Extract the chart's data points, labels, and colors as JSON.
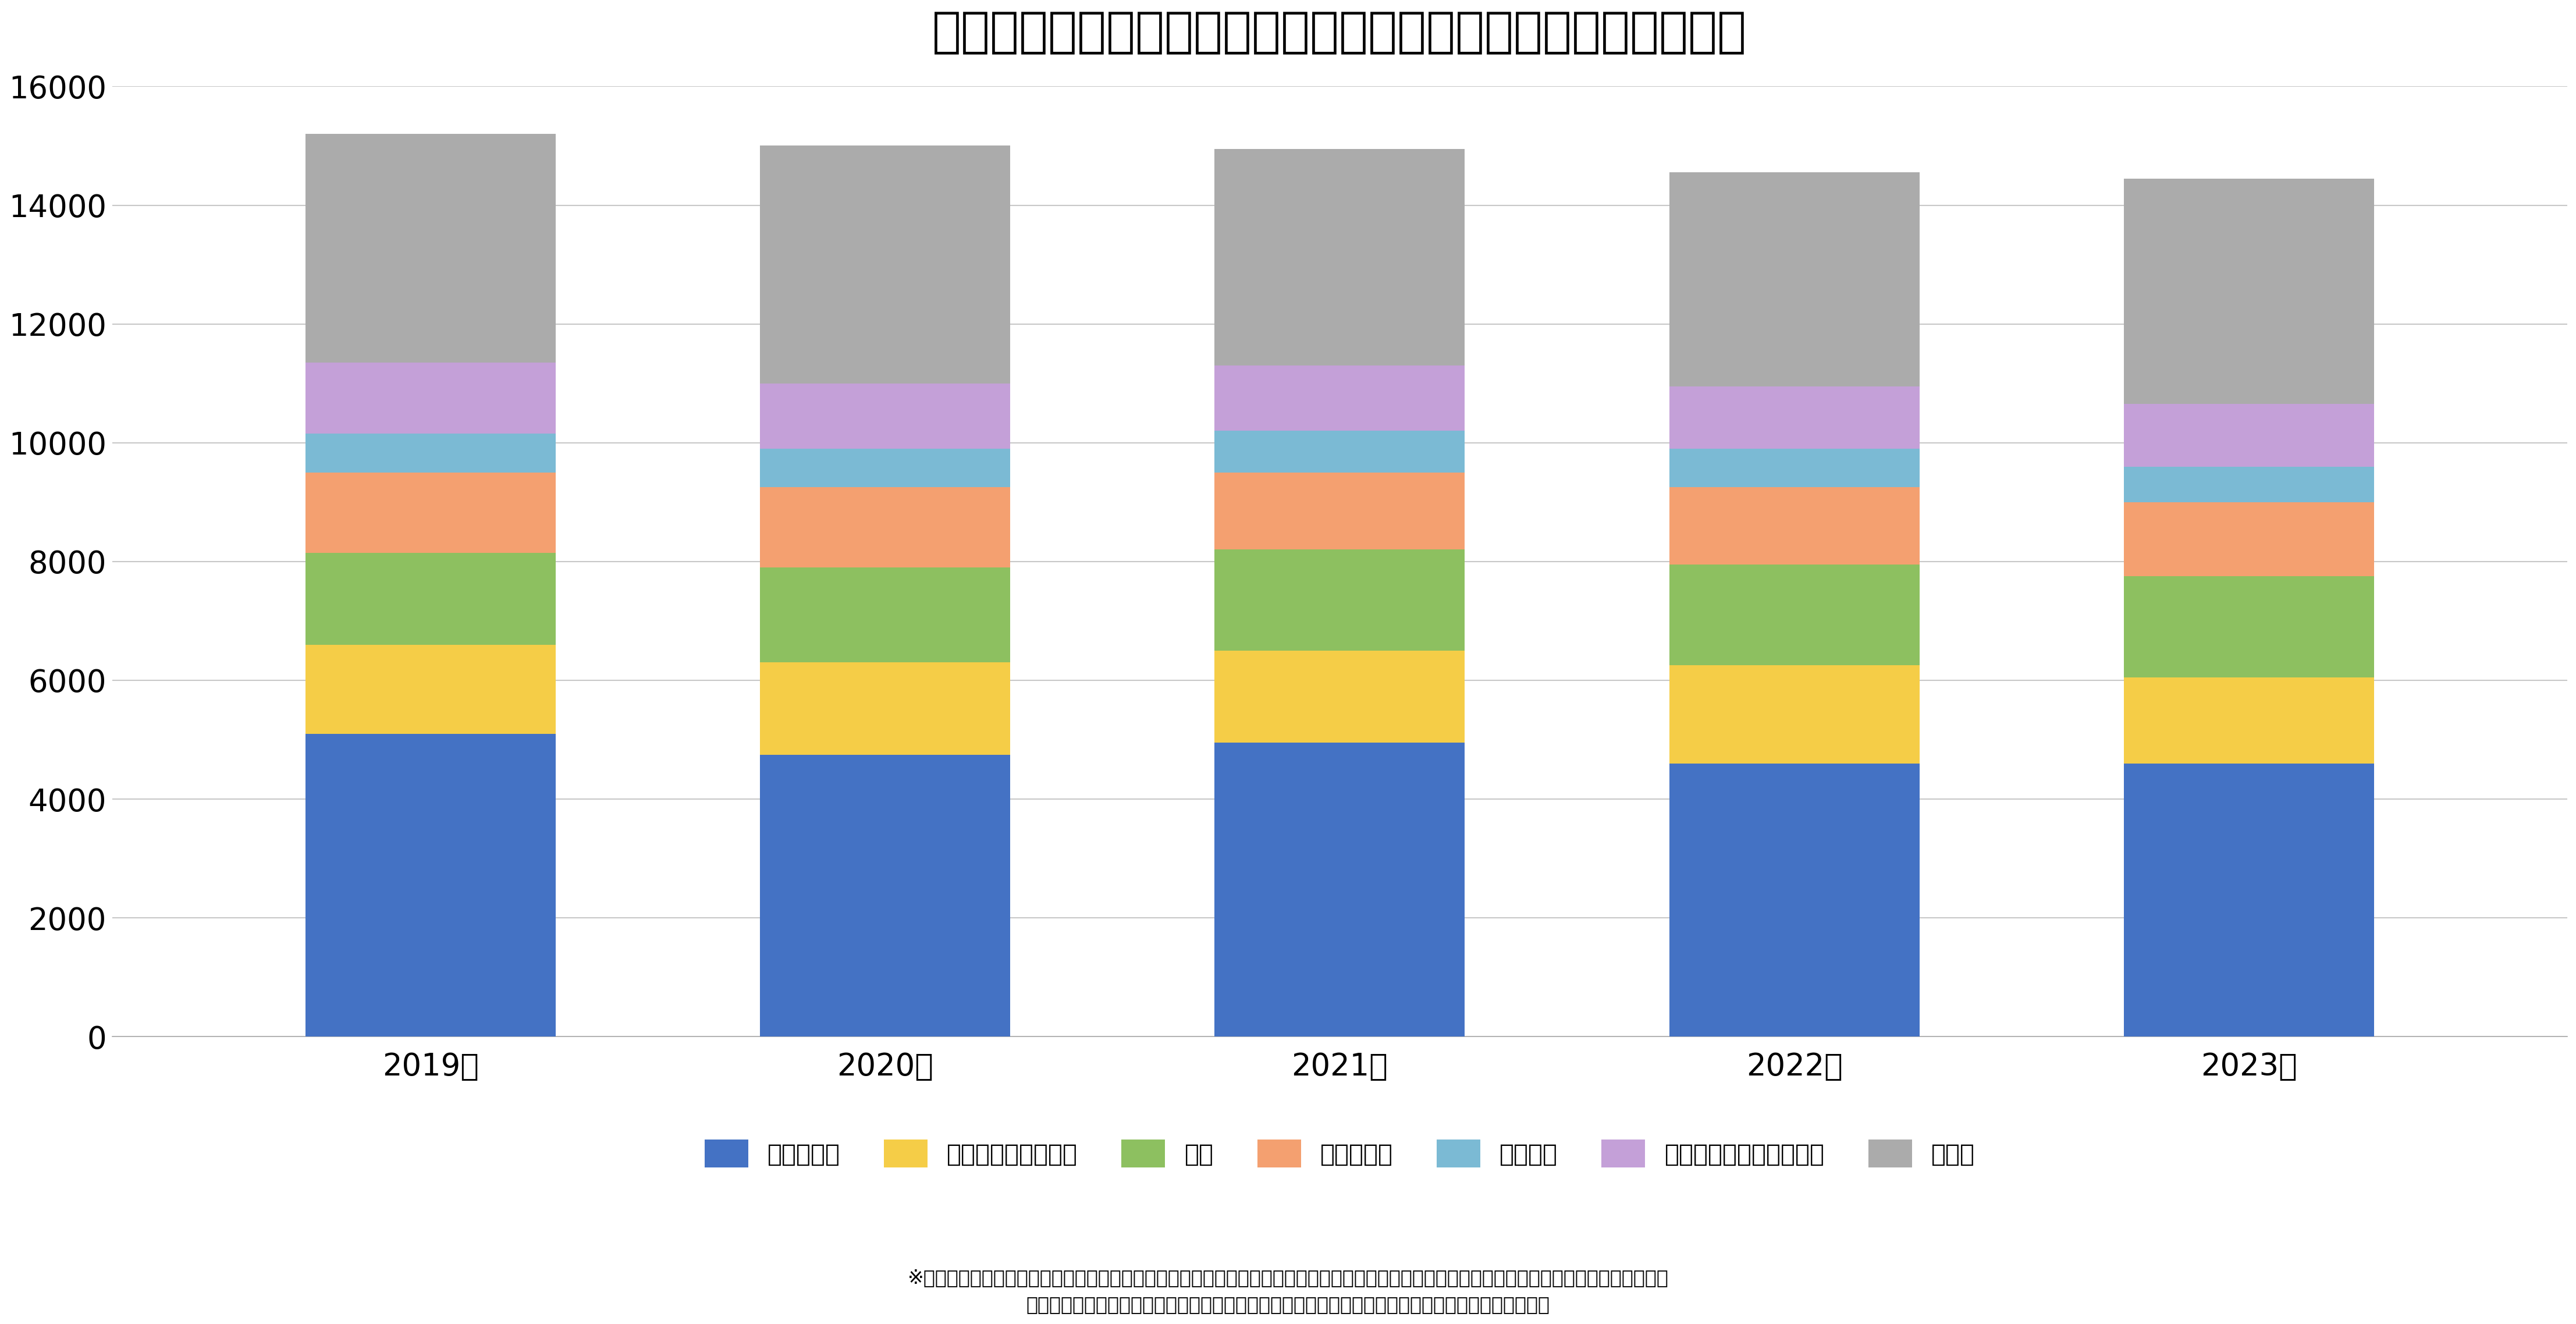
{
  "title": "建築業における労働災害（死傷災害）発生状況（事故の型別）",
  "years": [
    "2019年",
    "2020年",
    "2021年",
    "2022年",
    "2023年"
  ],
  "categories": [
    "墜落・転落",
    "挟まれ・巻き込まれ",
    "転倒",
    "飛来・落下",
    "激突され",
    "動作の反動・無理な動作",
    "その他"
  ],
  "colors": [
    "#4472C4",
    "#F5CD47",
    "#8DC060",
    "#F4A070",
    "#7BBAD4",
    "#C4A0D8",
    "#ABABAB"
  ],
  "data": {
    "墜落・転落": [
      5100,
      4750,
      4950,
      4600,
      4600
    ],
    "挟まれ・巻き込まれ": [
      1500,
      1550,
      1550,
      1650,
      1450
    ],
    "転倒": [
      1550,
      1600,
      1700,
      1700,
      1700
    ],
    "飛来・落下": [
      1350,
      1350,
      1300,
      1300,
      1250
    ],
    "激突され": [
      650,
      650,
      700,
      650,
      600
    ],
    "動作の反動・無理な動作": [
      1200,
      1100,
      1100,
      1050,
      1050
    ],
    "その他": [
      3850,
      4000,
      3650,
      3600,
      3800
    ]
  },
  "ylim": [
    0,
    16000
  ],
  "yticks": [
    0,
    2000,
    4000,
    6000,
    8000,
    10000,
    12000,
    14000,
    16000
  ],
  "footnote_line1": "※その他に含まれる型（「激突」「崩壊・倒壊」「切れ・こすれ」「踏抜き」「おぼれ」「高温・低温物との接触」「有害物との接触」「感電」",
  "footnote_line2": "「爆発」「破裂」「火災」「交通事故（道路）」「交通事故（その他）」「その他」「分類不能」）",
  "background_color": "#FFFFFF",
  "grid_color": "#C8C8C8"
}
